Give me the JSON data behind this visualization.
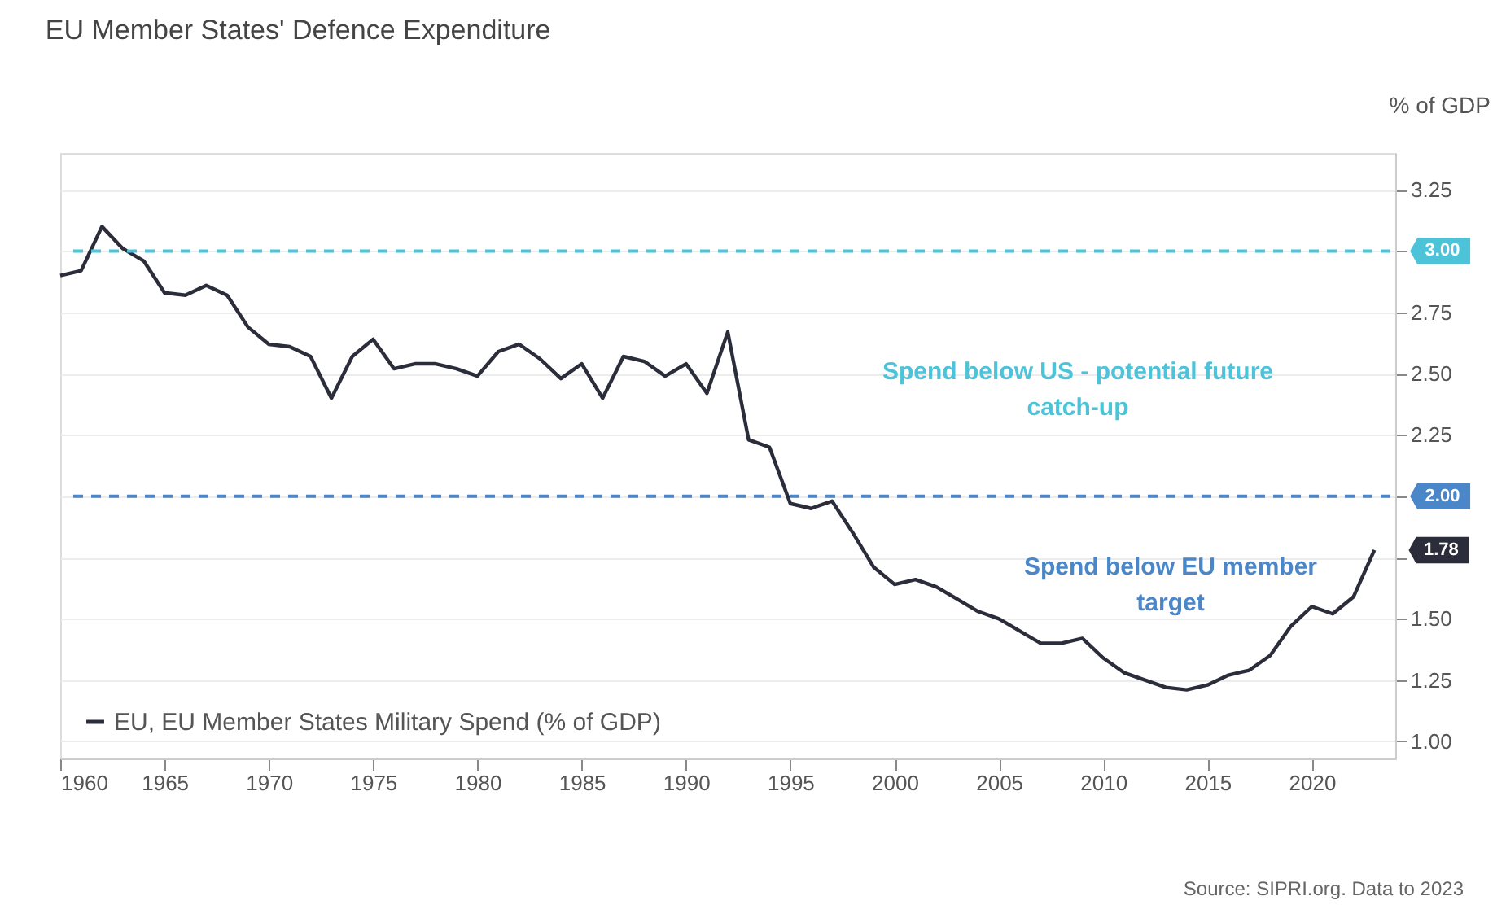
{
  "chart_data": {
    "type": "line",
    "title": "EU Member States' Defence Expenditure",
    "ylabel": "% of GDP",
    "x": [
      1960,
      1961,
      1962,
      1963,
      1964,
      1965,
      1966,
      1967,
      1968,
      1969,
      1970,
      1971,
      1972,
      1973,
      1974,
      1975,
      1976,
      1977,
      1978,
      1979,
      1980,
      1981,
      1982,
      1983,
      1984,
      1985,
      1986,
      1987,
      1988,
      1989,
      1990,
      1991,
      1992,
      1993,
      1994,
      1995,
      1996,
      1997,
      1998,
      1999,
      2000,
      2001,
      2002,
      2003,
      2004,
      2005,
      2006,
      2007,
      2008,
      2009,
      2010,
      2011,
      2012,
      2013,
      2014,
      2015,
      2016,
      2017,
      2018,
      2019,
      2020,
      2021,
      2022,
      2023
    ],
    "series": [
      {
        "name": "EU, EU Member States Military Spend (% of GDP)",
        "color": "#2b2d3b",
        "values": [
          2.9,
          2.92,
          3.1,
          3.01,
          2.96,
          2.83,
          2.82,
          2.86,
          2.82,
          2.69,
          2.62,
          2.61,
          2.57,
          2.4,
          2.57,
          2.64,
          2.52,
          2.54,
          2.54,
          2.52,
          2.49,
          2.59,
          2.62,
          2.56,
          2.48,
          2.54,
          2.4,
          2.57,
          2.55,
          2.49,
          2.54,
          2.42,
          2.67,
          2.23,
          2.2,
          1.97,
          1.95,
          1.98,
          1.85,
          1.71,
          1.64,
          1.66,
          1.63,
          1.58,
          1.53,
          1.5,
          1.45,
          1.4,
          1.4,
          1.42,
          1.34,
          1.28,
          1.25,
          1.22,
          1.21,
          1.23,
          1.27,
          1.29,
          1.35,
          1.47,
          1.55,
          1.52,
          1.59,
          1.78
        ]
      }
    ],
    "xlim": [
      1960,
      2024
    ],
    "xticks": [
      1960,
      1965,
      1970,
      1975,
      1980,
      1985,
      1990,
      1995,
      2000,
      2005,
      2010,
      2015,
      2020
    ],
    "ylim": [
      0.93,
      3.4
    ],
    "yticks": [
      {
        "value": 1,
        "label": "1.00"
      },
      {
        "value": 1.25,
        "label": "1.25"
      },
      {
        "value": 1.5,
        "label": "1.50"
      },
      {
        "value": 1.75,
        "label": null
      },
      {
        "value": 2,
        "label": null
      },
      {
        "value": 2.25,
        "label": "2.25"
      },
      {
        "value": 2.5,
        "label": "2.50"
      },
      {
        "value": 2.75,
        "label": "2.75"
      },
      {
        "value": 3,
        "label": null
      },
      {
        "value": 3.25,
        "label": "3.25"
      }
    ],
    "ref_lines": [
      {
        "axis": "y",
        "value": 3.0,
        "label": "3.00",
        "color": "#4cc3d9",
        "line_style": "dashed"
      },
      {
        "axis": "y",
        "value": 2.0,
        "label": "2.00",
        "color": "#4a86c8",
        "line_style": "dashed"
      }
    ],
    "annotations": [
      "Spend below US - potential future catch-up",
      "Spend below EU member target",
      {
        "text": "1.78",
        "x": 2023,
        "y": 1.78
      },
      "Source: SIPRI.org. Data to 2023"
    ],
    "grid": "y",
    "legend": "bottom left",
    "marker": "none",
    "line_style": "solid"
  }
}
